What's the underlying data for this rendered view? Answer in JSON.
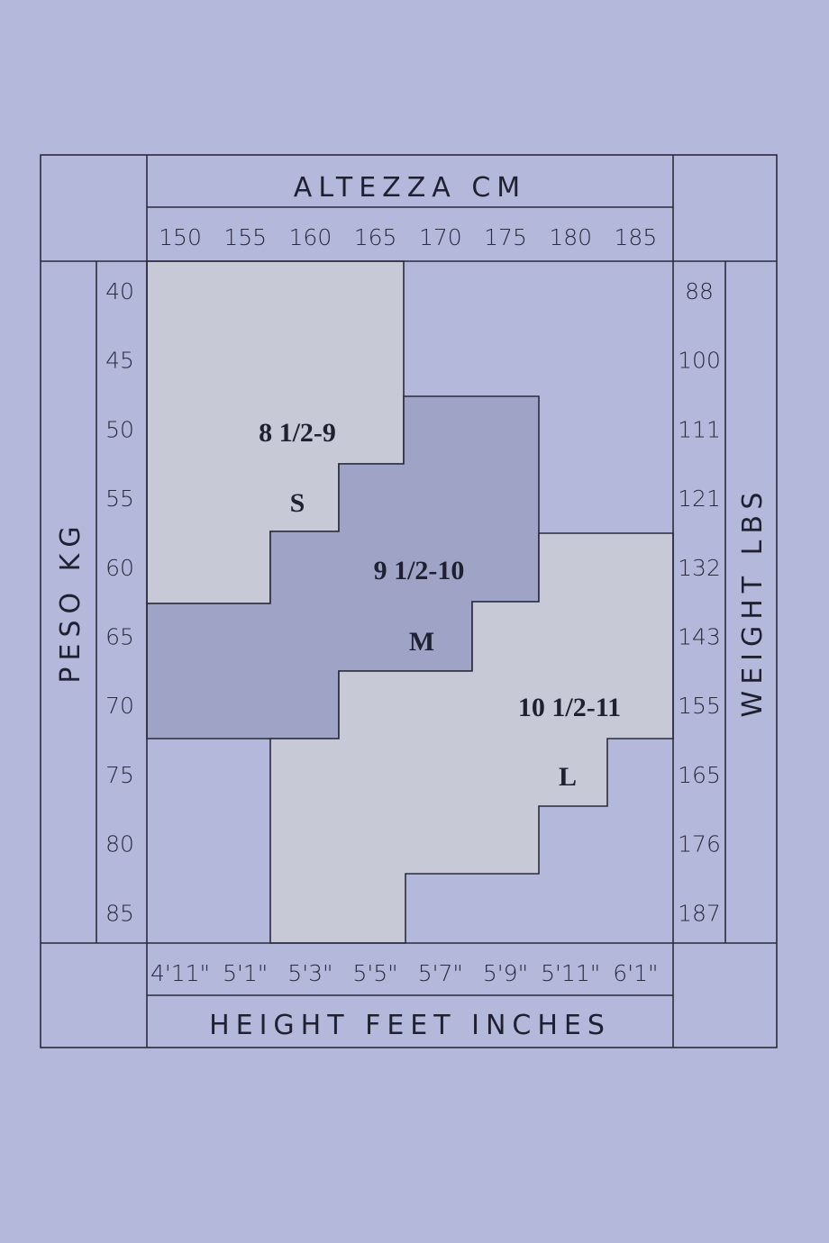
{
  "chart_data": {
    "type": "size-chart",
    "top_title": "ALTEZZA CM",
    "bottom_title": "HEIGHT FEET INCHES",
    "left_title": "PESO KG",
    "right_title": "WEIGHT LBS",
    "height_cm_ticks": [
      "150",
      "155",
      "160",
      "165",
      "170",
      "175",
      "180",
      "185"
    ],
    "height_ft_ticks": [
      "4'11\"",
      "5'1\"",
      "5'3\"",
      "5'5\"",
      "5'7\"",
      "5'9\"",
      "5'11\"",
      "6'1\""
    ],
    "weight_kg_ticks": [
      "40",
      "45",
      "50",
      "55",
      "60",
      "65",
      "70",
      "75",
      "80",
      "85"
    ],
    "weight_lbs_ticks": [
      "88",
      "100",
      "111",
      "121",
      "132",
      "143",
      "155",
      "165",
      "176",
      "187"
    ],
    "sizes": [
      {
        "size": "S",
        "range": "8 1/2-9",
        "color": "#c7c9d6"
      },
      {
        "size": "M",
        "range": "9 1/2-10",
        "color": "#9fa4c6"
      },
      {
        "size": "L",
        "range": "10 1/2-11",
        "color": "#c7c9d6"
      }
    ],
    "background": "#b4b9dc"
  }
}
